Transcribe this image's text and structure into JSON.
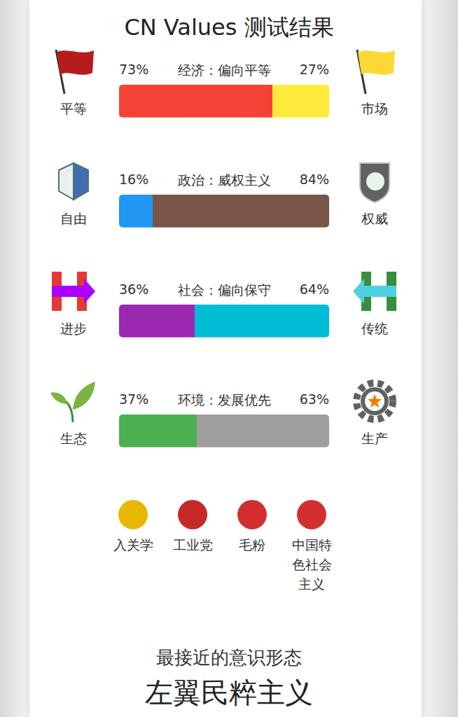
{
  "title": "CN Values 测试结果",
  "chart_data": [
    {
      "type": "bar",
      "orientation": "horizontal",
      "stacked": true,
      "data_labels": true,
      "tick_labels": false,
      "title": "经济：偏向平等",
      "xlim": [
        0,
        100
      ],
      "series": [
        {
          "name": "平等",
          "color": "#f44336",
          "values": [
            73
          ],
          "value_labels": [
            "73%"
          ]
        },
        {
          "name": "市场",
          "color": "#ffeb3b",
          "values": [
            27
          ],
          "value_labels": [
            "27%"
          ]
        }
      ]
    },
    {
      "type": "bar",
      "orientation": "horizontal",
      "stacked": true,
      "data_labels": true,
      "tick_labels": false,
      "title": "政治：威权主义",
      "xlim": [
        0,
        100
      ],
      "series": [
        {
          "name": "自由",
          "color": "#2196f3",
          "values": [
            16
          ],
          "value_labels": [
            "16%"
          ]
        },
        {
          "name": "权威",
          "color": "#795548",
          "values": [
            84
          ],
          "value_labels": [
            "84%"
          ]
        }
      ]
    },
    {
      "type": "bar",
      "orientation": "horizontal",
      "stacked": true,
      "data_labels": true,
      "tick_labels": false,
      "title": "社会：偏向保守",
      "xlim": [
        0,
        100
      ],
      "series": [
        {
          "name": "进步",
          "color": "#9c27b0",
          "values": [
            36
          ],
          "value_labels": [
            "36%"
          ]
        },
        {
          "name": "传统",
          "color": "#00bcd4",
          "values": [
            64
          ],
          "value_labels": [
            "64%"
          ]
        }
      ]
    },
    {
      "type": "bar",
      "orientation": "horizontal",
      "stacked": true,
      "data_labels": true,
      "tick_labels": false,
      "title": "环境：发展优先",
      "xlim": [
        0,
        100
      ],
      "series": [
        {
          "name": "生态",
          "color": "#4caf50",
          "values": [
            37
          ],
          "value_labels": [
            "37%"
          ]
        },
        {
          "name": "生产",
          "color": "#9e9e9e",
          "values": [
            63
          ],
          "value_labels": [
            "63%"
          ]
        }
      ]
    }
  ],
  "tags": [
    "入关学",
    "工业党",
    "毛粉",
    "中国特色社会主义"
  ],
  "closest_ideology": {
    "label": "最接近的意识形态",
    "value": "左翼民粹主义"
  }
}
